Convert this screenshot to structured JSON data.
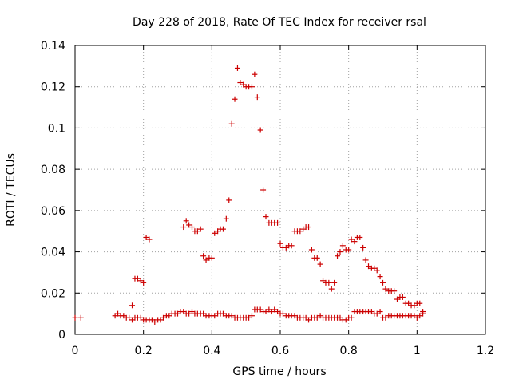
{
  "chart_data": {
    "type": "scatter",
    "title": "Day 228 of 2018, Rate Of TEC Index for receiver rsal",
    "xlabel": "GPS time / hours",
    "ylabel": "ROTI / TECUs",
    "xlim": [
      0,
      1.2
    ],
    "ylim": [
      0,
      0.14
    ],
    "grid": true,
    "marker": "+",
    "marker_color": "#cc0000",
    "xticks": [
      "0",
      "0.2",
      "0.4",
      "0.6",
      "0.8",
      "1",
      "1.2"
    ],
    "yticks": [
      "0",
      "0.02",
      "0.04",
      "0.06",
      "0.08",
      "0.1",
      "0.12",
      "0.14"
    ],
    "series": [
      {
        "name": "ROTI",
        "points": [
          [
            0.0,
            0.008
          ],
          [
            0.017,
            0.008
          ],
          [
            0.117,
            0.009
          ],
          [
            0.125,
            0.01
          ],
          [
            0.133,
            0.009
          ],
          [
            0.142,
            0.009
          ],
          [
            0.15,
            0.008
          ],
          [
            0.158,
            0.008
          ],
          [
            0.167,
            0.007
          ],
          [
            0.175,
            0.008
          ],
          [
            0.183,
            0.008
          ],
          [
            0.192,
            0.008
          ],
          [
            0.2,
            0.007
          ],
          [
            0.208,
            0.007
          ],
          [
            0.217,
            0.007
          ],
          [
            0.225,
            0.007
          ],
          [
            0.233,
            0.006
          ],
          [
            0.242,
            0.007
          ],
          [
            0.25,
            0.007
          ],
          [
            0.258,
            0.008
          ],
          [
            0.267,
            0.009
          ],
          [
            0.275,
            0.009
          ],
          [
            0.283,
            0.01
          ],
          [
            0.292,
            0.01
          ],
          [
            0.3,
            0.01
          ],
          [
            0.308,
            0.011
          ],
          [
            0.317,
            0.011
          ],
          [
            0.325,
            0.01
          ],
          [
            0.333,
            0.01
          ],
          [
            0.342,
            0.011
          ],
          [
            0.35,
            0.01
          ],
          [
            0.358,
            0.01
          ],
          [
            0.367,
            0.01
          ],
          [
            0.375,
            0.01
          ],
          [
            0.383,
            0.009
          ],
          [
            0.392,
            0.009
          ],
          [
            0.4,
            0.009
          ],
          [
            0.408,
            0.009
          ],
          [
            0.417,
            0.01
          ],
          [
            0.425,
            0.01
          ],
          [
            0.433,
            0.01
          ],
          [
            0.442,
            0.009
          ],
          [
            0.45,
            0.009
          ],
          [
            0.458,
            0.009
          ],
          [
            0.467,
            0.008
          ],
          [
            0.475,
            0.008
          ],
          [
            0.483,
            0.008
          ],
          [
            0.492,
            0.008
          ],
          [
            0.5,
            0.008
          ],
          [
            0.508,
            0.008
          ],
          [
            0.517,
            0.009
          ],
          [
            0.525,
            0.012
          ],
          [
            0.533,
            0.012
          ],
          [
            0.542,
            0.012
          ],
          [
            0.55,
            0.011
          ],
          [
            0.558,
            0.011
          ],
          [
            0.567,
            0.012
          ],
          [
            0.575,
            0.011
          ],
          [
            0.583,
            0.012
          ],
          [
            0.592,
            0.011
          ],
          [
            0.6,
            0.01
          ],
          [
            0.608,
            0.01
          ],
          [
            0.617,
            0.009
          ],
          [
            0.625,
            0.009
          ],
          [
            0.633,
            0.009
          ],
          [
            0.642,
            0.009
          ],
          [
            0.65,
            0.008
          ],
          [
            0.658,
            0.008
          ],
          [
            0.667,
            0.008
          ],
          [
            0.675,
            0.008
          ],
          [
            0.683,
            0.007
          ],
          [
            0.692,
            0.008
          ],
          [
            0.7,
            0.008
          ],
          [
            0.708,
            0.008
          ],
          [
            0.717,
            0.009
          ],
          [
            0.725,
            0.008
          ],
          [
            0.733,
            0.008
          ],
          [
            0.742,
            0.008
          ],
          [
            0.75,
            0.008
          ],
          [
            0.758,
            0.008
          ],
          [
            0.767,
            0.008
          ],
          [
            0.775,
            0.008
          ],
          [
            0.783,
            0.007
          ],
          [
            0.792,
            0.007
          ],
          [
            0.8,
            0.008
          ],
          [
            0.808,
            0.008
          ],
          [
            0.817,
            0.011
          ],
          [
            0.825,
            0.011
          ],
          [
            0.833,
            0.011
          ],
          [
            0.842,
            0.011
          ],
          [
            0.85,
            0.011
          ],
          [
            0.858,
            0.011
          ],
          [
            0.867,
            0.011
          ],
          [
            0.875,
            0.01
          ],
          [
            0.883,
            0.01
          ],
          [
            0.892,
            0.011
          ],
          [
            0.9,
            0.008
          ],
          [
            0.908,
            0.008
          ],
          [
            0.917,
            0.009
          ],
          [
            0.925,
            0.009
          ],
          [
            0.933,
            0.009
          ],
          [
            0.942,
            0.009
          ],
          [
            0.95,
            0.009
          ],
          [
            0.958,
            0.009
          ],
          [
            0.967,
            0.009
          ],
          [
            0.975,
            0.009
          ],
          [
            0.983,
            0.009
          ],
          [
            0.992,
            0.009
          ],
          [
            1.0,
            0.008
          ],
          [
            1.008,
            0.009
          ],
          [
            1.017,
            0.01
          ],
          [
            0.167,
            0.014
          ],
          [
            0.175,
            0.027
          ],
          [
            0.183,
            0.027
          ],
          [
            0.192,
            0.026
          ],
          [
            0.2,
            0.025
          ],
          [
            0.208,
            0.047
          ],
          [
            0.217,
            0.046
          ],
          [
            0.317,
            0.052
          ],
          [
            0.325,
            0.055
          ],
          [
            0.333,
            0.053
          ],
          [
            0.342,
            0.052
          ],
          [
            0.35,
            0.05
          ],
          [
            0.358,
            0.05
          ],
          [
            0.367,
            0.051
          ],
          [
            0.375,
            0.038
          ],
          [
            0.383,
            0.036
          ],
          [
            0.392,
            0.037
          ],
          [
            0.4,
            0.037
          ],
          [
            0.408,
            0.049
          ],
          [
            0.417,
            0.05
          ],
          [
            0.425,
            0.051
          ],
          [
            0.433,
            0.051
          ],
          [
            0.442,
            0.056
          ],
          [
            0.45,
            0.065
          ],
          [
            0.458,
            0.102
          ],
          [
            0.467,
            0.114
          ],
          [
            0.475,
            0.129
          ],
          [
            0.483,
            0.122
          ],
          [
            0.492,
            0.121
          ],
          [
            0.5,
            0.12
          ],
          [
            0.508,
            0.12
          ],
          [
            0.517,
            0.12
          ],
          [
            0.525,
            0.126
          ],
          [
            0.533,
            0.115
          ],
          [
            0.542,
            0.099
          ],
          [
            0.55,
            0.07
          ],
          [
            0.558,
            0.057
          ],
          [
            0.567,
            0.054
          ],
          [
            0.575,
            0.054
          ],
          [
            0.583,
            0.054
          ],
          [
            0.592,
            0.054
          ],
          [
            0.6,
            0.044
          ],
          [
            0.608,
            0.042
          ],
          [
            0.617,
            0.042
          ],
          [
            0.625,
            0.043
          ],
          [
            0.633,
            0.043
          ],
          [
            0.642,
            0.05
          ],
          [
            0.65,
            0.05
          ],
          [
            0.658,
            0.05
          ],
          [
            0.667,
            0.051
          ],
          [
            0.675,
            0.052
          ],
          [
            0.683,
            0.052
          ],
          [
            0.692,
            0.041
          ],
          [
            0.7,
            0.037
          ],
          [
            0.708,
            0.037
          ],
          [
            0.717,
            0.034
          ],
          [
            0.725,
            0.026
          ],
          [
            0.733,
            0.025
          ],
          [
            0.742,
            0.025
          ],
          [
            0.75,
            0.022
          ],
          [
            0.758,
            0.025
          ],
          [
            0.767,
            0.038
          ],
          [
            0.775,
            0.04
          ],
          [
            0.783,
            0.043
          ],
          [
            0.792,
            0.041
          ],
          [
            0.8,
            0.041
          ],
          [
            0.808,
            0.046
          ],
          [
            0.817,
            0.045
          ],
          [
            0.825,
            0.047
          ],
          [
            0.833,
            0.047
          ],
          [
            0.842,
            0.042
          ],
          [
            0.85,
            0.036
          ],
          [
            0.858,
            0.033
          ],
          [
            0.867,
            0.032
          ],
          [
            0.875,
            0.032
          ],
          [
            0.883,
            0.031
          ],
          [
            0.892,
            0.028
          ],
          [
            0.9,
            0.025
          ],
          [
            0.908,
            0.022
          ],
          [
            0.917,
            0.021
          ],
          [
            0.925,
            0.021
          ],
          [
            0.933,
            0.021
          ],
          [
            0.942,
            0.017
          ],
          [
            0.95,
            0.018
          ],
          [
            0.958,
            0.018
          ],
          [
            0.967,
            0.015
          ],
          [
            0.975,
            0.015
          ],
          [
            0.983,
            0.014
          ],
          [
            0.992,
            0.014
          ],
          [
            1.0,
            0.015
          ],
          [
            1.008,
            0.015
          ],
          [
            1.017,
            0.011
          ]
        ]
      }
    ]
  }
}
